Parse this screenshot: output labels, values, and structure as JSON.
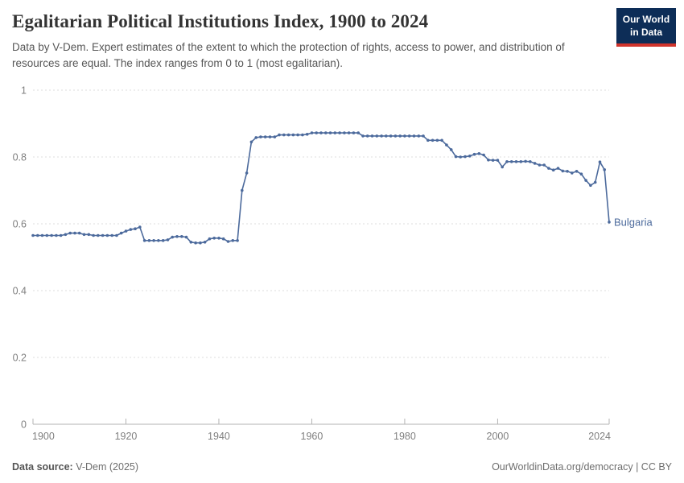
{
  "header": {
    "title": "Egalitarian Political Institutions Index, 1900 to 2024",
    "subtitle": "Data by V-Dem. Expert estimates of the extent to which the protection of rights, access to power, and distribution of resources are equal. The index ranges from 0 to 1 (most egalitarian)."
  },
  "logo": {
    "line1": "Our World",
    "line2": "in Data",
    "bg_color": "#0d2d57",
    "accent_color": "#d0342c"
  },
  "footer": {
    "source_label": "Data source:",
    "source_value": " V-Dem (2025)",
    "right_text": "OurWorldinData.org/democracy | CC BY"
  },
  "chart_data": {
    "type": "line",
    "title": "Egalitarian Political Institutions Index, 1900 to 2024",
    "xlabel": "",
    "ylabel": "",
    "entity": "Bulgaria",
    "line_color": "#4c6a9c",
    "grid": true,
    "legend_position": "end-of-line-label",
    "x_start": 1900,
    "x_end": 2024,
    "ylim": [
      0,
      1
    ],
    "xticks": [
      1900,
      1920,
      1940,
      1960,
      1980,
      2000,
      2024
    ],
    "ytick_values": [
      0,
      0.2,
      0.4,
      0.6,
      0.8,
      1
    ],
    "ytick_labels": [
      "0",
      "0.2",
      "0.4",
      "0.6",
      "0.8",
      "1"
    ],
    "values": [
      0.565,
      0.565,
      0.565,
      0.565,
      0.565,
      0.565,
      0.565,
      0.568,
      0.572,
      0.572,
      0.572,
      0.568,
      0.568,
      0.565,
      0.565,
      0.565,
      0.565,
      0.565,
      0.565,
      0.572,
      0.578,
      0.583,
      0.585,
      0.59,
      0.55,
      0.55,
      0.55,
      0.55,
      0.55,
      0.552,
      0.56,
      0.562,
      0.562,
      0.56,
      0.545,
      0.543,
      0.543,
      0.545,
      0.555,
      0.557,
      0.557,
      0.555,
      0.547,
      0.55,
      0.55,
      0.7,
      0.752,
      0.845,
      0.858,
      0.86,
      0.86,
      0.86,
      0.86,
      0.866,
      0.866,
      0.866,
      0.866,
      0.866,
      0.866,
      0.868,
      0.872,
      0.872,
      0.872,
      0.872,
      0.872,
      0.872,
      0.872,
      0.872,
      0.872,
      0.872,
      0.872,
      0.863,
      0.863,
      0.863,
      0.863,
      0.863,
      0.863,
      0.863,
      0.863,
      0.863,
      0.863,
      0.863,
      0.863,
      0.863,
      0.863,
      0.85,
      0.85,
      0.85,
      0.85,
      0.836,
      0.822,
      0.801,
      0.8,
      0.801,
      0.803,
      0.808,
      0.81,
      0.806,
      0.791,
      0.79,
      0.79,
      0.77,
      0.786,
      0.786,
      0.786,
      0.786,
      0.787,
      0.786,
      0.781,
      0.776,
      0.776,
      0.766,
      0.761,
      0.766,
      0.758,
      0.757,
      0.752,
      0.757,
      0.749,
      0.73,
      0.715,
      0.724,
      0.785,
      0.762,
      0.605
    ]
  }
}
